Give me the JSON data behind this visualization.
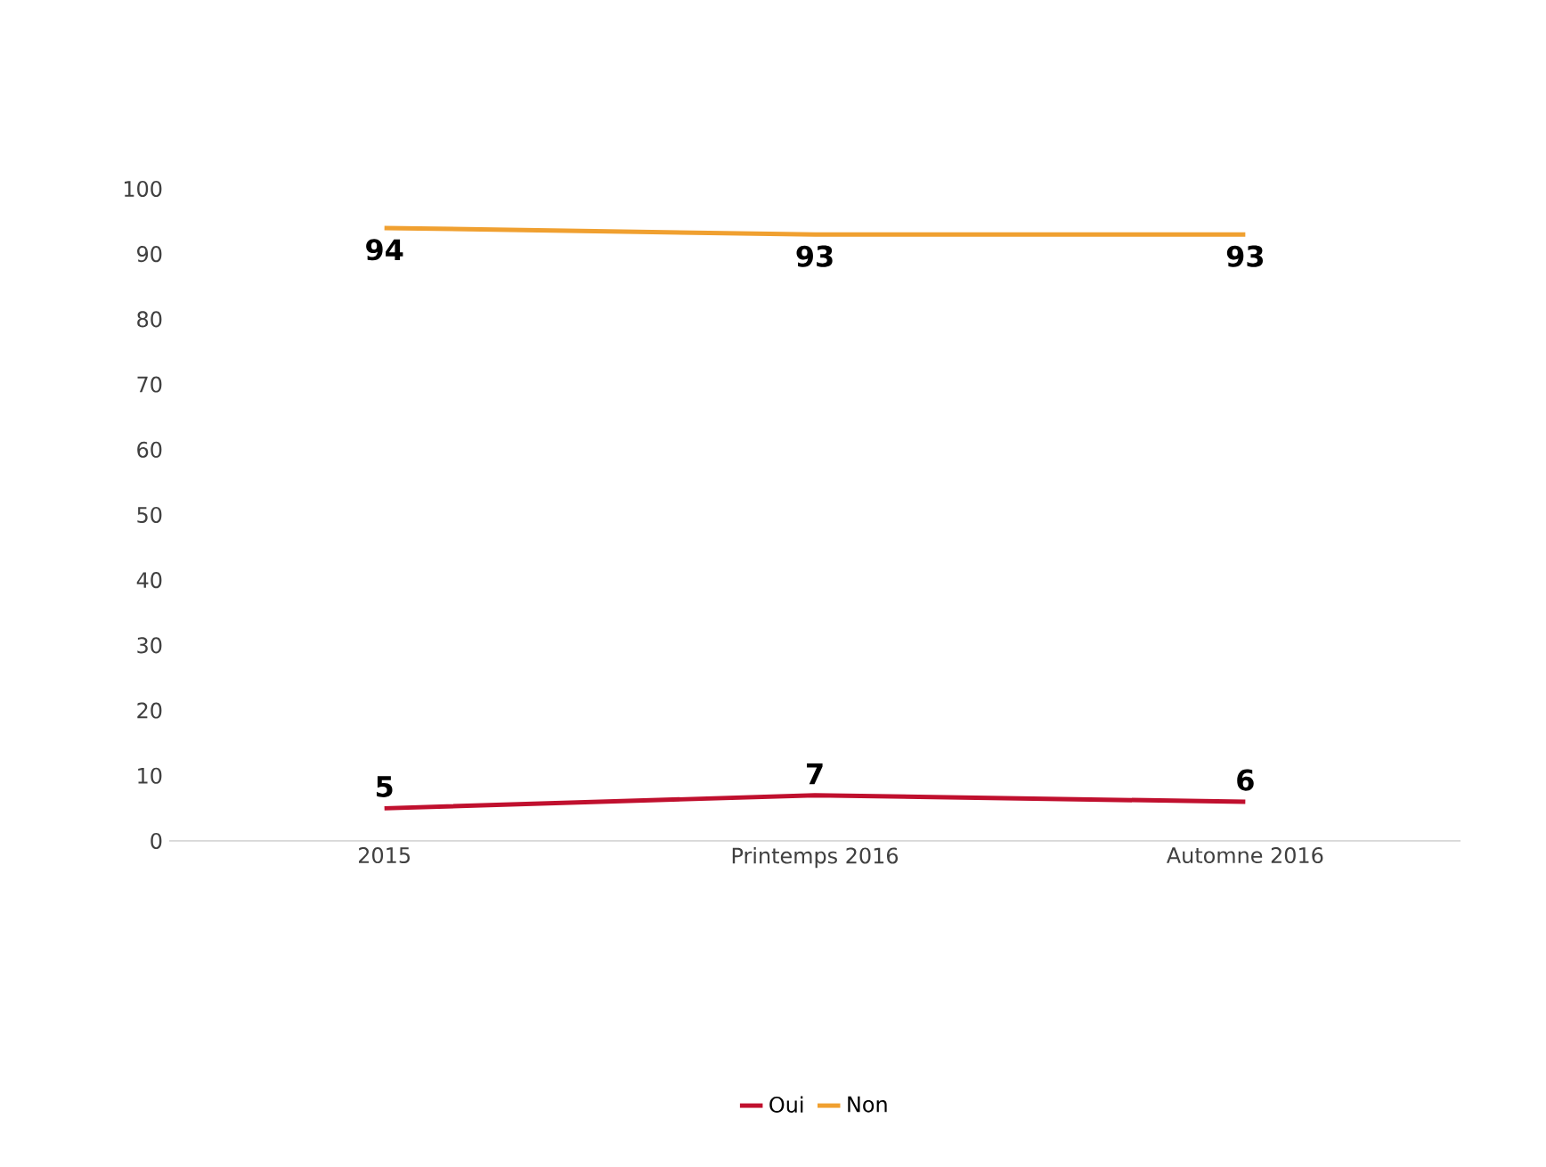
{
  "chart_data": {
    "type": "line",
    "categories": [
      "2015",
      "Printemps 2016",
      "Automne 2016"
    ],
    "series": [
      {
        "name": "Oui",
        "color": "#c0102e",
        "values": [
          5,
          7,
          6
        ]
      },
      {
        "name": "Non",
        "color": "#f0a030",
        "values": [
          94,
          93,
          93
        ]
      }
    ],
    "ylim": [
      0,
      100
    ],
    "yticks": [
      0,
      10,
      20,
      30,
      40,
      50,
      60,
      70,
      80,
      90,
      100
    ],
    "data_labels": true,
    "legend": "bottom",
    "grid": false,
    "marker": "none",
    "line_style": "solid"
  }
}
